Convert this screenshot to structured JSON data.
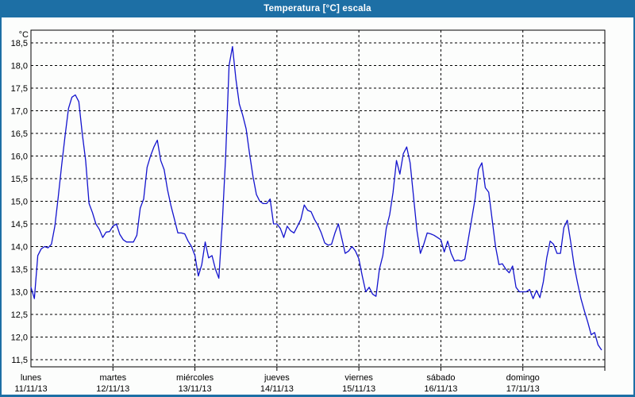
{
  "window": {
    "title": "Temperatura [°C] escala"
  },
  "colors": {
    "titlebar_bg": "#1D6FA5",
    "titlebar_text": "#FFFFFF",
    "window_border": "#1D6FA5",
    "content_bg": "#FCFDFC",
    "axis": "#000000",
    "grid": "#000000",
    "text": "#000000",
    "series_line": "#1313CE"
  },
  "chart_data": {
    "type": "line",
    "title": "Temperatura [°C] escala",
    "y_axis_unit": "°C",
    "ylim": [
      11.5,
      18.5
    ],
    "y_tick_step": 0.5,
    "y_tick_labels": [
      "18,5",
      "18,0",
      "17,5",
      "17,0",
      "16,5",
      "16,0",
      "15,5",
      "15,0",
      "14,5",
      "14,0",
      "13,5",
      "13,0",
      "12,5",
      "12,0",
      "11,5"
    ],
    "x_tick_days": [
      {
        "name": "lunes",
        "date": "11/11/13"
      },
      {
        "name": "martes",
        "date": "12/11/13"
      },
      {
        "name": "miércoles",
        "date": "13/11/13"
      },
      {
        "name": "jueves",
        "date": "14/11/13"
      },
      {
        "name": "viernes",
        "date": "15/11/13"
      },
      {
        "name": "sábado",
        "date": "16/11/13"
      },
      {
        "name": "domingo",
        "date": "17/11/13"
      }
    ],
    "points_per_day": 24,
    "grid_style": "dashed",
    "legend": "none",
    "series": [
      {
        "color": "#1313CE",
        "values": [
          13.1,
          12.85,
          13.8,
          13.95,
          14.0,
          13.97,
          14.05,
          14.45,
          15.1,
          15.8,
          16.45,
          17.05,
          17.3,
          17.35,
          17.2,
          16.5,
          15.9,
          14.95,
          14.75,
          14.5,
          14.38,
          14.2,
          14.32,
          14.33,
          14.45,
          14.5,
          14.27,
          14.15,
          14.1,
          14.1,
          14.1,
          14.25,
          14.85,
          15.05,
          15.75,
          16.0,
          16.2,
          16.35,
          15.9,
          15.7,
          15.25,
          14.9,
          14.6,
          14.3,
          14.3,
          14.28,
          14.12,
          14.0,
          13.8,
          13.35,
          13.6,
          14.1,
          13.75,
          13.8,
          13.5,
          13.3,
          14.5,
          16.0,
          18.0,
          18.42,
          17.7,
          17.15,
          16.9,
          16.6,
          16.05,
          15.55,
          15.15,
          15.0,
          14.95,
          14.95,
          15.05,
          14.5,
          14.5,
          14.4,
          14.2,
          14.45,
          14.35,
          14.3,
          14.45,
          14.6,
          14.92,
          14.8,
          14.77,
          14.6,
          14.47,
          14.3,
          14.08,
          14.03,
          14.05,
          14.3,
          14.5,
          14.18,
          13.85,
          13.9,
          14.0,
          13.9,
          13.73,
          13.35,
          13.0,
          13.1,
          12.95,
          12.9,
          13.5,
          13.8,
          14.4,
          14.7,
          15.2,
          15.9,
          15.6,
          16.05,
          16.2,
          15.85,
          15.1,
          14.35,
          13.85,
          14.05,
          14.3,
          14.28,
          14.25,
          14.2,
          14.15,
          13.88,
          14.12,
          13.85,
          13.68,
          13.7,
          13.68,
          13.72,
          14.15,
          14.6,
          15.05,
          15.7,
          15.85,
          15.3,
          15.2,
          14.6,
          14.0,
          13.6,
          13.62,
          13.5,
          13.42,
          13.57,
          13.1,
          13.0,
          13.0,
          13.0,
          13.05,
          12.85,
          13.03,
          12.87,
          13.22,
          13.75,
          14.12,
          14.05,
          13.85,
          13.85,
          14.42,
          14.58,
          14.1,
          13.58,
          13.2,
          12.85,
          12.58,
          12.33,
          12.05,
          12.1,
          11.83,
          11.72
        ]
      }
    ]
  }
}
